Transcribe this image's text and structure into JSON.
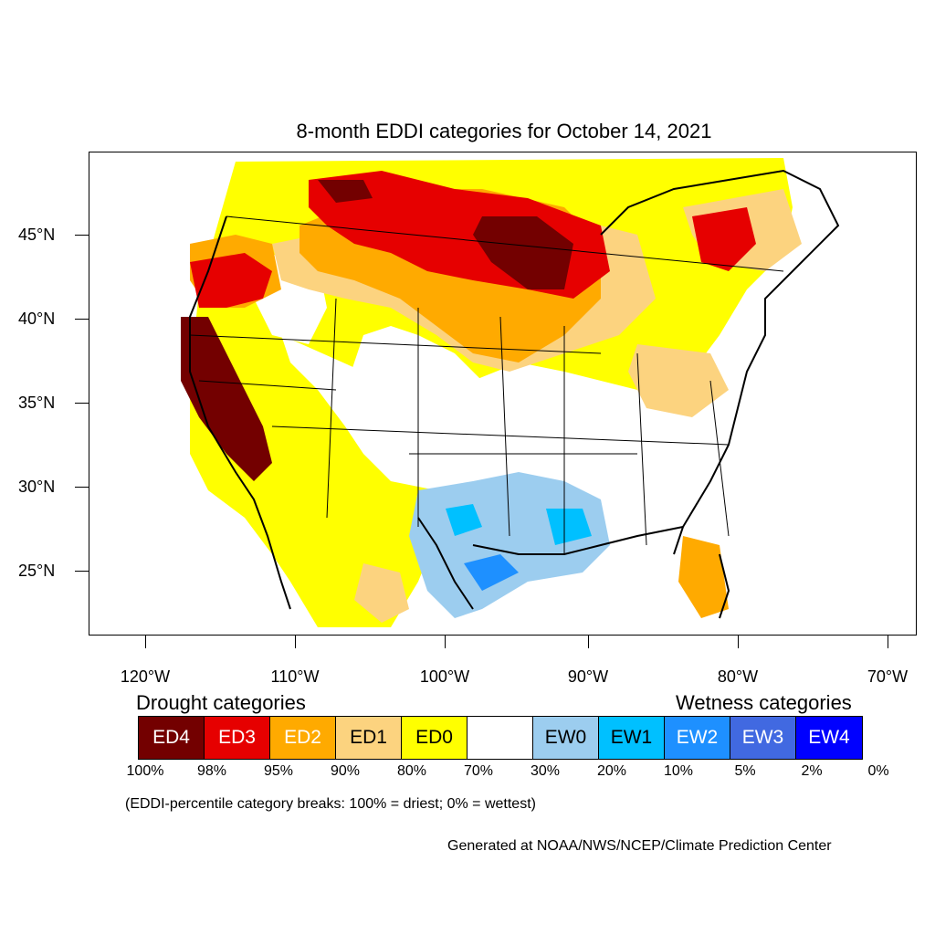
{
  "title": "8-month EDDI categories for October 14, 2021",
  "lat_labels": [
    "45°N",
    "40°N",
    "35°N",
    "30°N",
    "25°N"
  ],
  "lon_labels": [
    "120°W",
    "110°W",
    "100°W",
    "90°W",
    "80°W",
    "70°W"
  ],
  "legend": {
    "drought_heading": "Drought categories",
    "wetness_heading": "Wetness categories",
    "categories": [
      {
        "label": "ED4",
        "color": "#730000",
        "text_color": "#ffffff"
      },
      {
        "label": "ED3",
        "color": "#e60000",
        "text_color": "#ffffff"
      },
      {
        "label": "ED2",
        "color": "#ffaa00",
        "text_color": "#ffffff"
      },
      {
        "label": "ED1",
        "color": "#fcd37f",
        "text_color": "#000000"
      },
      {
        "label": "ED0",
        "color": "#ffff00",
        "text_color": "#000000"
      },
      {
        "label": "",
        "color": "#ffffff",
        "text_color": "#000000"
      },
      {
        "label": "EW0",
        "color": "#9ccdef",
        "text_color": "#000000"
      },
      {
        "label": "EW1",
        "color": "#00c0ff",
        "text_color": "#000000"
      },
      {
        "label": "EW2",
        "color": "#1e90ff",
        "text_color": "#ffffff"
      },
      {
        "label": "EW3",
        "color": "#4169e1",
        "text_color": "#ffffff"
      },
      {
        "label": "EW4",
        "color": "#0000ff",
        "text_color": "#ffffff"
      }
    ],
    "percent_breaks": [
      "100%",
      "98%",
      "95%",
      "90%",
      "80%",
      "70%",
      "30%",
      "20%",
      "10%",
      "5%",
      "2%",
      "0%"
    ]
  },
  "note": "(EDDI-percentile category breaks: 100% = driest; 0% = wettest)",
  "credit": "Generated at NOAA/NWS/NCEP/Climate Prediction Center"
}
